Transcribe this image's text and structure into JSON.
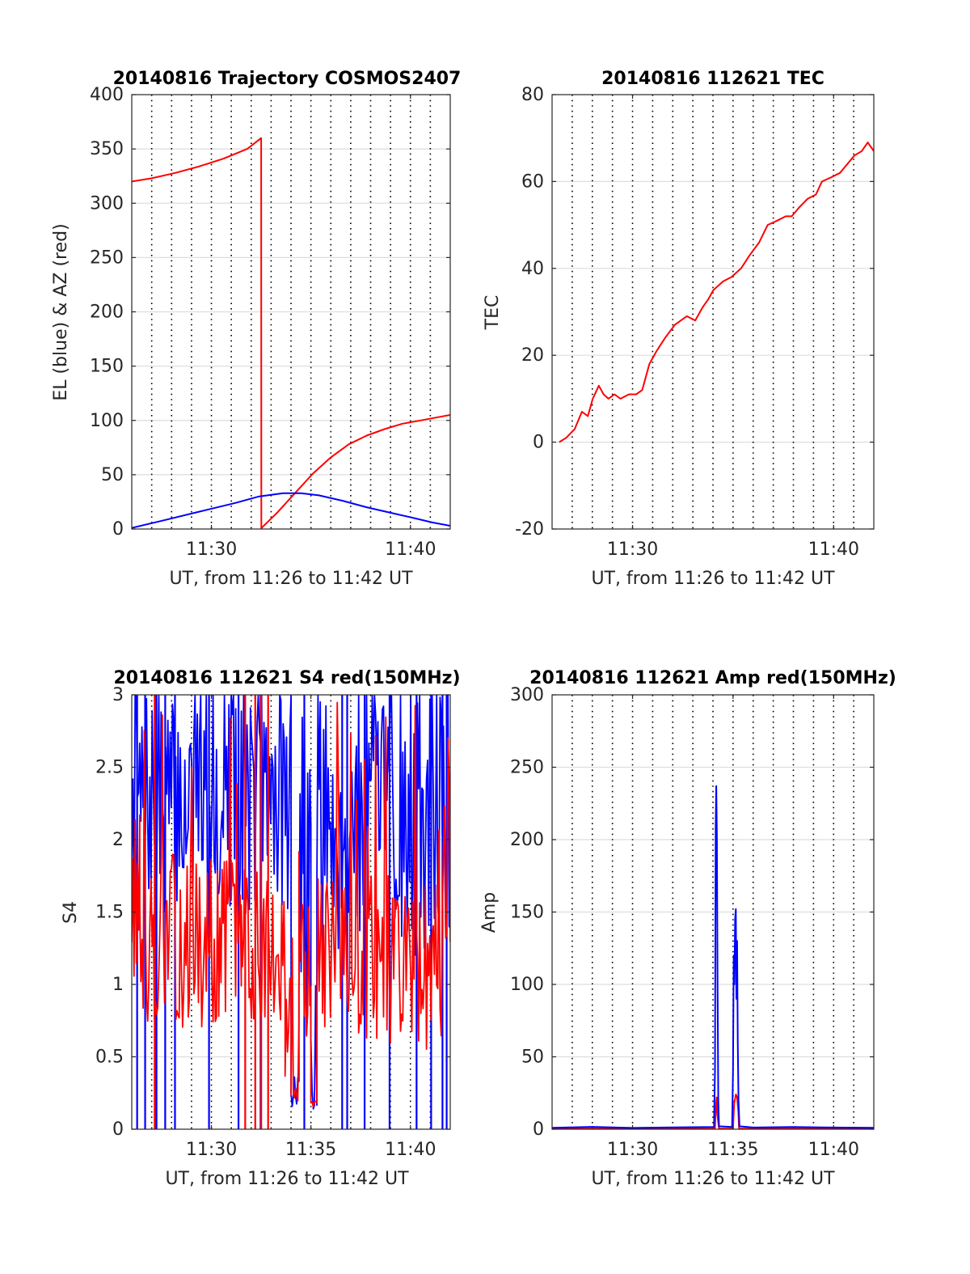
{
  "figure": {
    "background": "#ffffff",
    "axis_color": "#262626",
    "grid_color": "#dedede",
    "minute_line_color": "#000000"
  },
  "chart_data": [
    {
      "type": "line",
      "title": "20140816 Trajectory COSMOS2407",
      "xlabel": "UT, from 11:26 to 11:42 UT",
      "ylabel": "EL (blue) & AZ (red)",
      "xlim": [
        11.4333,
        11.7
      ],
      "ylim": [
        0,
        400
      ],
      "yticks": [
        0,
        50,
        100,
        150,
        200,
        250,
        300,
        350,
        400
      ],
      "yticklabels": [
        "0",
        "50",
        "100",
        "150",
        "200",
        "250",
        "300",
        "350",
        "400"
      ],
      "xticks": [
        11.5,
        11.6667
      ],
      "xticklabels": [
        "11:30",
        "11:40"
      ],
      "grid": true,
      "minute_lines": true,
      "series": [
        {
          "color": "#ff0000",
          "x": [
            11.4333,
            11.45,
            11.47,
            11.49,
            11.51,
            11.53,
            11.5417,
            11.5418,
            11.542,
            11.555,
            11.57,
            11.585,
            11.6,
            11.615,
            11.63,
            11.645,
            11.66,
            11.675,
            11.69,
            11.7
          ],
          "y": [
            320,
            323,
            328,
            334,
            341,
            350,
            360,
            1,
            1,
            15,
            33,
            51,
            66,
            78,
            86,
            92,
            97,
            100,
            103,
            105
          ]
        },
        {
          "color": "#0000ff",
          "x": [
            11.4333,
            11.46,
            11.49,
            11.52,
            11.54,
            11.56,
            11.575,
            11.59,
            11.61,
            11.63,
            11.65,
            11.67,
            11.685,
            11.7
          ],
          "y": [
            1,
            8,
            16,
            24,
            30,
            33,
            33,
            31,
            26,
            20,
            15,
            10,
            6,
            3
          ]
        }
      ]
    },
    {
      "type": "line",
      "title": "20140816 112621 TEC",
      "xlabel": "UT, from 11:26 to 11:42 UT",
      "ylabel": "TEC",
      "xlim": [
        11.4333,
        11.7
      ],
      "ylim": [
        -20,
        80
      ],
      "yticks": [
        -20,
        0,
        20,
        40,
        60,
        80
      ],
      "yticklabels": [
        "-20",
        "0",
        "20",
        "40",
        "60",
        "80"
      ],
      "xticks": [
        11.5,
        11.6667
      ],
      "xticklabels": [
        "11:30",
        "11:40"
      ],
      "grid": true,
      "minute_lines": true,
      "series": [
        {
          "color": "#ff0000",
          "x": [
            11.4392,
            11.445,
            11.452,
            11.458,
            11.463,
            11.467,
            11.472,
            11.476,
            11.48,
            11.485,
            11.49,
            11.497,
            11.503,
            11.508,
            11.514,
            11.52,
            11.527,
            11.535,
            11.545,
            11.552,
            11.558,
            11.563,
            11.567,
            11.575,
            11.582,
            11.59,
            11.597,
            11.605,
            11.612,
            11.62,
            11.627,
            11.632,
            11.638,
            11.645,
            11.652,
            11.657,
            11.665,
            11.672,
            11.678,
            11.684,
            11.69,
            11.695,
            11.7
          ],
          "y": [
            0,
            1,
            3,
            7,
            6,
            10,
            13,
            11,
            10,
            11,
            10,
            11,
            11,
            12,
            18,
            21,
            24,
            27,
            29,
            28,
            31,
            33,
            35,
            37,
            38,
            40,
            43,
            46,
            50,
            51,
            52,
            52,
            54,
            56,
            57,
            60,
            61,
            62,
            64,
            66,
            67,
            69,
            67
          ]
        }
      ]
    },
    {
      "type": "line",
      "title": "20140816 112621 S4 red(150MHz)",
      "xlabel": "UT, from 11:26 to 11:42 UT",
      "ylabel": "S4",
      "xlim": [
        11.4333,
        11.7
      ],
      "ylim": [
        0,
        3
      ],
      "yticks": [
        0,
        0.5,
        1,
        1.5,
        2,
        2.5,
        3
      ],
      "yticklabels": [
        "0",
        "0.5",
        "1",
        "1.5",
        "2",
        "2.5",
        "3"
      ],
      "xticks": [
        11.5,
        11.5833,
        11.6667
      ],
      "xticklabels": [
        "11:30",
        "11:35",
        "11:40"
      ],
      "grid": true,
      "minute_lines": true,
      "noisy": [
        {
          "color": "#0000ff",
          "seed": 7,
          "segments": [
            [
              11.4333,
              11.5667,
              1.5,
              3
            ],
            [
              11.5667,
              11.5733,
              0.1,
              0.4
            ],
            [
              11.5733,
              11.5833,
              0.6,
              3
            ],
            [
              11.5833,
              11.5883,
              0.12,
              0.28
            ],
            [
              11.5883,
              11.7,
              1.2,
              3
            ]
          ],
          "drops": [
            11.4378,
            11.4445,
            11.454,
            11.4613,
            11.4695,
            11.498,
            11.5227,
            11.5412,
            11.5778,
            11.6095,
            11.6137,
            11.6283,
            11.6492,
            11.6718,
            11.684,
            11.6935,
            11.697
          ]
        },
        {
          "color": "#ff0000",
          "seed": 13,
          "segments": [
            [
              11.4333,
              11.44,
              1.0,
              2.2
            ],
            [
              11.44,
              11.525,
              0.7,
              1.9
            ],
            [
              11.525,
              11.5617,
              0.75,
              1.8
            ],
            [
              11.5617,
              11.5667,
              0.35,
              1.2
            ],
            [
              11.5667,
              11.5733,
              0.1,
              0.3
            ],
            [
              11.5733,
              11.5833,
              0.5,
              1.6
            ],
            [
              11.5833,
              11.5883,
              0.13,
              0.25
            ],
            [
              11.5883,
              11.7,
              0.55,
              1.75
            ]
          ],
          "drops": [
            11.4525,
            11.5283,
            11.5367,
            11.5417,
            11.5475
          ]
        }
      ]
    },
    {
      "type": "line",
      "title": "20140816 112621 Amp red(150MHz)",
      "xlabel": "UT, from 11:26 to 11:42 UT",
      "ylabel": "Amp",
      "xlim": [
        11.4333,
        11.7
      ],
      "ylim": [
        0,
        300
      ],
      "yticks": [
        0,
        50,
        100,
        150,
        200,
        250,
        300
      ],
      "yticklabels": [
        "0",
        "50",
        "100",
        "150",
        "200",
        "250",
        "300"
      ],
      "xticks": [
        11.5,
        11.5833,
        11.6667
      ],
      "xticklabels": [
        "11:30",
        "11:35",
        "11:40"
      ],
      "grid": true,
      "minute_lines": true,
      "series": [
        {
          "color": "#ff0000",
          "x": [
            11.4333,
            11.5683,
            11.5689,
            11.5697,
            11.5703,
            11.5717,
            11.5833,
            11.5843,
            11.5857,
            11.5867,
            11.5877,
            11.5883,
            11.7
          ],
          "y": [
            0.4,
            0.4,
            14,
            22,
            10,
            0.4,
            0.4,
            18,
            24,
            22,
            12,
            0.4,
            0.4
          ]
        },
        {
          "color": "#0000ff",
          "x": [
            11.4333,
            11.4667,
            11.5,
            11.5333,
            11.5675,
            11.5683,
            11.5689,
            11.5694,
            11.5699,
            11.5704,
            11.5711,
            11.5717,
            11.5825,
            11.5833,
            11.5839,
            11.5844,
            11.585,
            11.5856,
            11.5861,
            11.5867,
            11.5872,
            11.5878,
            11.5886,
            11.6,
            11.6333,
            11.6667,
            11.7
          ],
          "y": [
            1,
            1.6,
            0.9,
            1.3,
            1.5,
            40,
            210,
            237,
            200,
            110,
            20,
            2,
            1.5,
            40,
            120,
            100,
            145,
            152,
            90,
            130,
            60,
            20,
            2,
            1.2,
            1.5,
            1.2,
            1
          ]
        }
      ]
    }
  ]
}
